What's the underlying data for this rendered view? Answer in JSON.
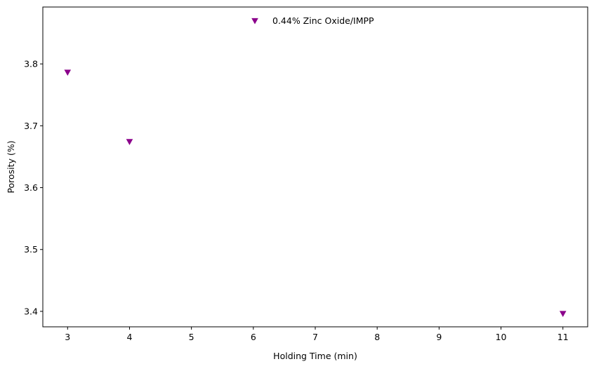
{
  "chart_data": {
    "type": "scatter",
    "title": "",
    "xlabel": "Holding Time (min)",
    "ylabel": "Porosity (%)",
    "xlim": [
      2.6,
      11.4
    ],
    "ylim": [
      3.375,
      3.892
    ],
    "xticks": [
      3,
      4,
      5,
      6,
      7,
      8,
      9,
      10,
      11
    ],
    "yticks": [
      3.4,
      3.5,
      3.6,
      3.7,
      3.8
    ],
    "ytick_labels": [
      "3.4",
      "3.5",
      "3.6",
      "3.7",
      "3.8"
    ],
    "grid": false,
    "legend_position": "upper-center",
    "series": [
      {
        "name": "0.44% Zinc Oxide/IMPP",
        "marker": "triangle-down",
        "color": "#8b008b",
        "points": [
          {
            "x": 3,
            "y": 3.786
          },
          {
            "x": 4,
            "y": 3.674
          },
          {
            "x": 11,
            "y": 3.396
          }
        ]
      }
    ]
  }
}
